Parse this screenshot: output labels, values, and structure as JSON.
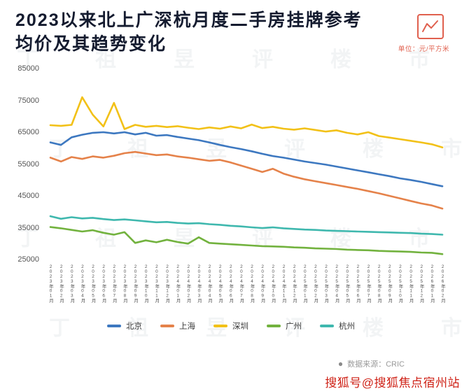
{
  "header": {
    "title_line1": "2023以来北上广深杭月度二手房挂牌参考",
    "title_line2": "均价及其趋势变化",
    "unit_label": "单位：元/平方米"
  },
  "watermark": {
    "text": "丁祖昱评楼市"
  },
  "footer": {
    "source_bullet": "●",
    "source": "数据来源：CRIC",
    "red_watermark": "搜狐号@搜狐焦点宿州站"
  },
  "chart_data": {
    "type": "line",
    "title": "2023以来北上广深杭月度二手房挂牌参考均价及其趋势变化",
    "xlabel": "",
    "ylabel": "元/平方米",
    "ylim": [
      25000,
      85000
    ],
    "yticks": [
      85000,
      75000,
      65000,
      55000,
      45000,
      35000,
      25000
    ],
    "grid": false,
    "legend_position": "bottom",
    "categories": [
      "2023年01月",
      "2023年02月",
      "2023年03月",
      "2023年04月",
      "2023年05月",
      "2023年06月",
      "2023年07月",
      "2023年08月",
      "2023年09月",
      "2023年10月",
      "2023年11月",
      "2023年12月",
      "2024年01月",
      "2024年02月",
      "2024年03月",
      "2024年04月",
      "2024年05月",
      "2024年06月",
      "2024年07月",
      "2024年08月",
      "2024年09月",
      "2024年10月",
      "2024年11月",
      "2024年12月",
      "2025年01月",
      "2025年02月",
      "2025年03月",
      "2025年04月",
      "2025年05月",
      "2025年06月",
      "2025年07月",
      "2025年08月",
      "2025年09月",
      "2025年10月",
      "2025年11月",
      "2025年12月",
      "2026年01月",
      "2026年02月"
    ],
    "series": [
      {
        "name": "北京",
        "color": "#3d78c0",
        "values": [
          61800,
          61000,
          63400,
          64200,
          64800,
          65000,
          64600,
          65000,
          64300,
          64800,
          63900,
          64100,
          63500,
          63000,
          62500,
          61800,
          61000,
          60300,
          59700,
          59000,
          58200,
          57500,
          57000,
          56400,
          55800,
          55300,
          54800,
          54200,
          53600,
          53000,
          52400,
          51800,
          51200,
          50500,
          50000,
          49400,
          48700,
          48000
        ]
      },
      {
        "name": "上海",
        "color": "#e5824a",
        "values": [
          57000,
          55800,
          57200,
          56600,
          57400,
          57000,
          57600,
          58400,
          58800,
          58300,
          57800,
          58000,
          57400,
          57000,
          56500,
          56000,
          56300,
          55500,
          54500,
          53500,
          52500,
          53500,
          52000,
          51000,
          50200,
          49600,
          49000,
          48400,
          47800,
          47200,
          46500,
          45800,
          45000,
          44200,
          43400,
          42600,
          42000,
          41000
        ]
      },
      {
        "name": "深圳",
        "color": "#f2c118",
        "values": [
          67200,
          67000,
          67300,
          76000,
          70500,
          66800,
          74200,
          66000,
          67300,
          66700,
          67000,
          66600,
          66900,
          66400,
          66000,
          66500,
          66100,
          66800,
          66200,
          67400,
          66300,
          66700,
          66100,
          65800,
          66200,
          65700,
          65200,
          65600,
          64800,
          64300,
          65000,
          63800,
          63300,
          62800,
          62300,
          61800,
          61200,
          60200
        ]
      },
      {
        "name": "广州",
        "color": "#72b23e",
        "values": [
          35200,
          34800,
          34300,
          33800,
          34200,
          33400,
          32800,
          33600,
          30200,
          31000,
          30400,
          31200,
          30500,
          30000,
          32000,
          30200,
          30000,
          29800,
          29600,
          29400,
          29200,
          29100,
          29000,
          28800,
          28700,
          28500,
          28400,
          28300,
          28100,
          28000,
          27900,
          27700,
          27600,
          27500,
          27400,
          27200,
          27100,
          26700
        ]
      },
      {
        "name": "杭州",
        "color": "#3fb8ae",
        "values": [
          38600,
          37800,
          38300,
          37900,
          38100,
          37700,
          37400,
          37600,
          37300,
          37000,
          36700,
          36800,
          36500,
          36300,
          36400,
          36100,
          35900,
          35600,
          35400,
          35100,
          34900,
          35100,
          34800,
          34600,
          34400,
          34300,
          34100,
          34000,
          33900,
          33800,
          33700,
          33600,
          33500,
          33400,
          33300,
          33100,
          33000,
          32800
        ]
      }
    ]
  }
}
